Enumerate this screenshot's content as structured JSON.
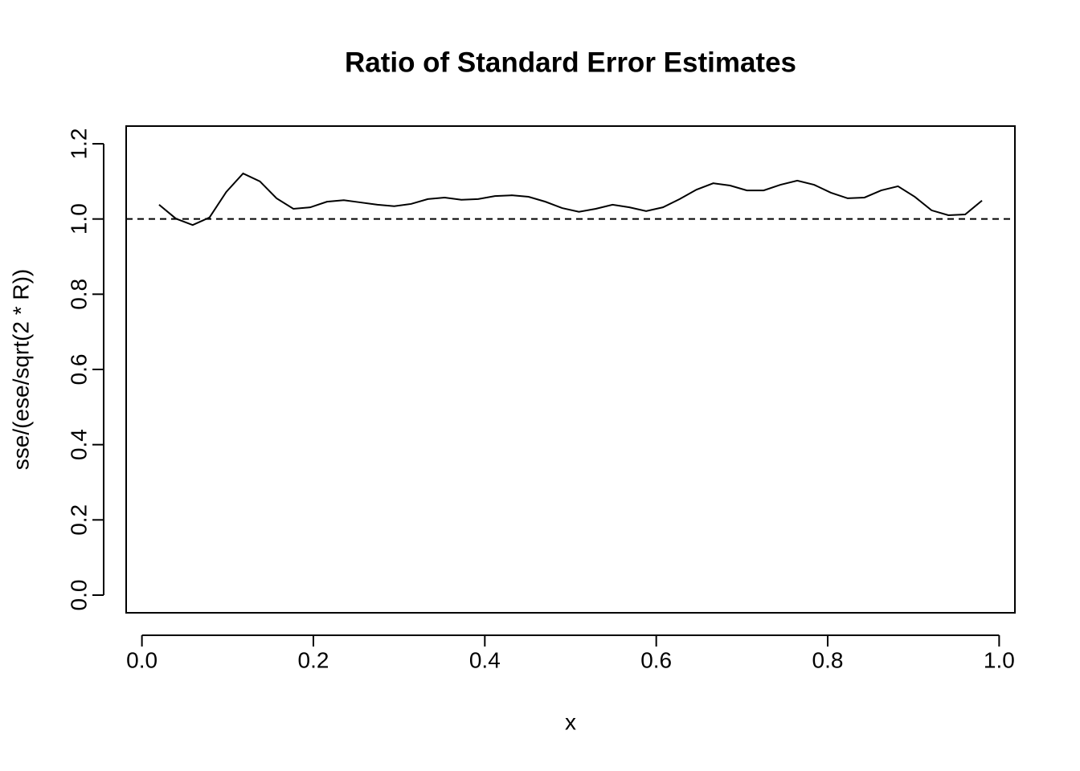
{
  "chart_data": {
    "type": "line",
    "title": "Ratio of Standard Error Estimates",
    "x_label": "x",
    "y_label": "sse/(ese/sqrt(2 * R))",
    "x": [
      0.02,
      0.0396,
      0.0592,
      0.0788,
      0.0984,
      0.118,
      0.1376,
      0.1571,
      0.1767,
      0.1963,
      0.2159,
      0.2355,
      0.2551,
      0.2747,
      0.2943,
      0.3139,
      0.3335,
      0.3531,
      0.3727,
      0.3922,
      0.4118,
      0.4314,
      0.451,
      0.4706,
      0.4902,
      0.5098,
      0.5294,
      0.549,
      0.5686,
      0.5882,
      0.6078,
      0.6273,
      0.6469,
      0.6665,
      0.6861,
      0.7057,
      0.7253,
      0.7449,
      0.7645,
      0.7841,
      0.8037,
      0.8233,
      0.8429,
      0.8624,
      0.882,
      0.9016,
      0.9212,
      0.9408,
      0.9604,
      0.98
    ],
    "values": [
      1.038,
      1.001,
      0.984,
      1.004,
      1.072,
      1.121,
      1.1,
      1.055,
      1.027,
      1.031,
      1.046,
      1.05,
      1.044,
      1.038,
      1.034,
      1.04,
      1.053,
      1.057,
      1.051,
      1.053,
      1.061,
      1.063,
      1.059,
      1.046,
      1.029,
      1.019,
      1.027,
      1.038,
      1.031,
      1.021,
      1.031,
      1.053,
      1.078,
      1.095,
      1.089,
      1.076,
      1.076,
      1.091,
      1.102,
      1.091,
      1.07,
      1.055,
      1.057,
      1.076,
      1.087,
      1.059,
      1.023,
      1.01,
      1.012,
      1.049
    ],
    "color": "#000000",
    "hline": 1,
    "xlim": [
      -0.0184,
      1.0184
    ],
    "ylim": [
      -0.047,
      1.247
    ],
    "xticks": [
      {
        "value": 0,
        "label": "0.0"
      },
      0.2,
      0.4,
      0.6,
      0.8,
      {
        "value": 1,
        "label": "1.0"
      }
    ],
    "yticks": [
      {
        "value": 0,
        "label": "0.0"
      },
      0.2,
      0.4,
      0.6,
      0.8,
      {
        "value": 1,
        "label": "1.0"
      },
      1.2
    ]
  }
}
